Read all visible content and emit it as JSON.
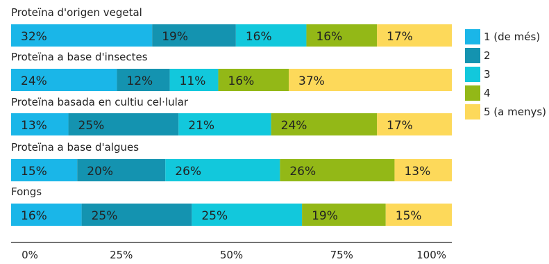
{
  "chart_data": {
    "type": "bar",
    "orientation": "horizontal",
    "stacked": true,
    "title": "",
    "xlabel": "",
    "ylabel": "",
    "xlim": [
      0,
      100
    ],
    "x_ticks": [
      "0%",
      "25%",
      "50%",
      "75%",
      "100%"
    ],
    "legend_position": "right",
    "categories": [
      "Proteïna d'origen vegetal",
      "Proteïna a base d'insectes",
      "Proteïna basada en cultiu cel·lular",
      "Proteïna a base d'algues",
      "Fongs"
    ],
    "series": [
      {
        "name": "1 (de més)",
        "color": "#1ab6e8",
        "values": [
          32,
          24,
          13,
          15,
          16
        ],
        "labels": [
          "32%",
          "24%",
          "13%",
          "15%",
          "16%"
        ]
      },
      {
        "name": "2",
        "color": "#1493b0",
        "values": [
          19,
          12,
          25,
          20,
          25
        ],
        "labels": [
          "19%",
          "12%",
          "25%",
          "20%",
          "25%"
        ]
      },
      {
        "name": "3",
        "color": "#12c8dc",
        "values": [
          16,
          11,
          21,
          26,
          25
        ],
        "labels": [
          "16%",
          "11%",
          "21%",
          "26%",
          "25%"
        ]
      },
      {
        "name": "4",
        "color": "#93b817",
        "values": [
          16,
          16,
          24,
          26,
          19
        ],
        "labels": [
          "16%",
          "16%",
          "24%",
          "26%",
          "19%"
        ]
      },
      {
        "name": "5 (a menys)",
        "color": "#fdd95a",
        "values": [
          17,
          37,
          17,
          13,
          15
        ],
        "labels": [
          "17%",
          "37%",
          "17%",
          "13%",
          "15%"
        ]
      }
    ]
  }
}
